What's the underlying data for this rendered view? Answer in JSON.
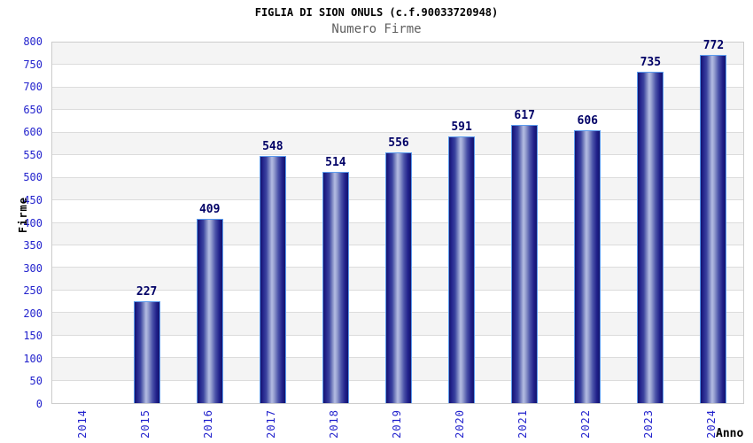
{
  "chart_data": {
    "type": "bar",
    "title": "FIGLIA DI SION ONULS (c.f.90033720948)",
    "subtitle": "Numero Firme",
    "xlabel": "Anno",
    "ylabel": "Firme",
    "categories": [
      "2014",
      "2015",
      "2016",
      "2017",
      "2018",
      "2019",
      "2020",
      "2021",
      "2022",
      "2023",
      "2024"
    ],
    "values": [
      null,
      227,
      409,
      548,
      514,
      556,
      591,
      617,
      606,
      735,
      772
    ],
    "ylim": [
      0,
      800
    ],
    "ytick_step": 50,
    "grid": "horizontal alternating bands every 50 units, light gridline at each tick",
    "legend": "none",
    "colors": {
      "axis_tick_blue": "#2323cd",
      "value_label_navy": "#000066",
      "bar_edge_navy": "#14146e",
      "bar_highlight": "#b4bce2",
      "bar_border_lightblue": "#5b9bee",
      "band_gray": "#f4f4f4",
      "band_white": "#ffffff",
      "gridline_gray": "#dcdcdc",
      "plot_border_gray": "#cccccc",
      "title_black": "#000000",
      "subtitle_gray": "#5f5f5f"
    }
  }
}
